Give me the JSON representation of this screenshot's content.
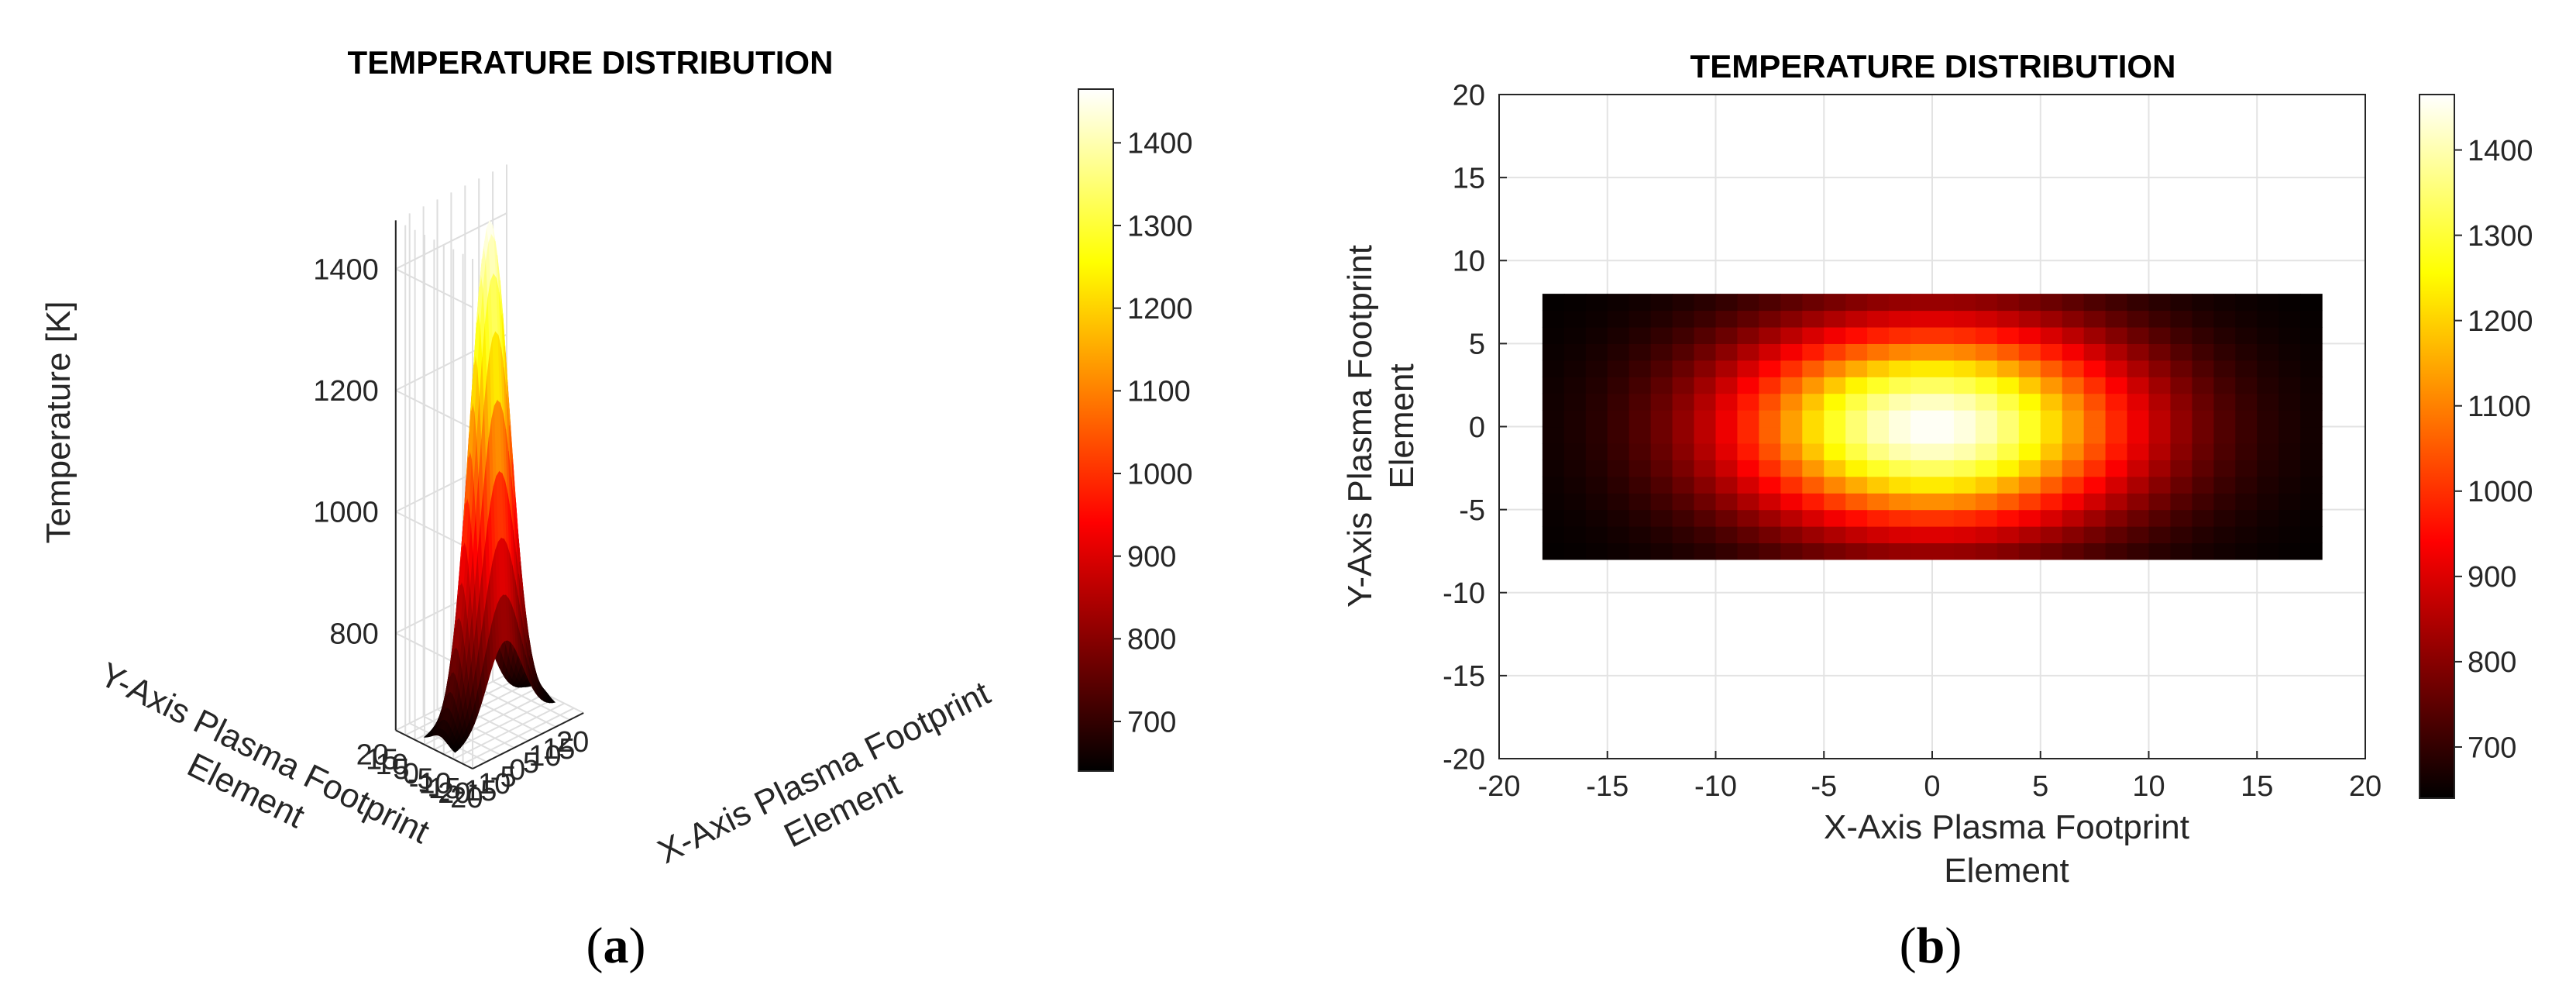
{
  "figure": {
    "panels": [
      {
        "caption_open": "(",
        "caption_letter": "a",
        "caption_close": ")"
      },
      {
        "caption_open": "(",
        "caption_letter": "b",
        "caption_close": ")"
      }
    ]
  },
  "chart_data": [
    {
      "type": "surface3d",
      "title": "TEMPERATURE DISTRIBUTION",
      "xlabel": [
        "X-Axis Plasma Footprint",
        "Element"
      ],
      "ylabel": [
        "Y-Axis Plasma Footprint",
        "Element"
      ],
      "zlabel": "Temperature [K]",
      "xlim": [
        -20,
        20
      ],
      "ylim": [
        -20,
        20
      ],
      "zlim": [
        640,
        1480
      ],
      "xticks": [
        -20,
        -15,
        -10,
        -5,
        0,
        5,
        10,
        15,
        20
      ],
      "yticks": [
        -20,
        -15,
        -10,
        -5,
        0,
        5,
        10,
        15,
        20
      ],
      "zticks": [
        800,
        1000,
        1200,
        1400
      ],
      "grid": true,
      "colormap": "hot",
      "field": {
        "x_range": [
          -18,
          18
        ],
        "y_range": [
          -8,
          8
        ],
        "grid_step": 1,
        "t_min": 640,
        "t_max": 1465,
        "sigma_x": 6.5,
        "sigma_y": 4.3,
        "peak": [
          0,
          0
        ]
      },
      "colorbar": {
        "ticks": [
          700,
          800,
          900,
          1000,
          1100,
          1200,
          1300,
          1400
        ],
        "range": [
          640,
          1465
        ]
      }
    },
    {
      "type": "heatmap",
      "title": "TEMPERATURE DISTRIBUTION",
      "xlabel": [
        "X-Axis Plasma Footprint",
        "Element"
      ],
      "ylabel": [
        "Y-Axis Plasma Footprint",
        "Element"
      ],
      "xlim": [
        -20,
        20
      ],
      "ylim": [
        -20,
        20
      ],
      "xticks": [
        -20,
        -15,
        -10,
        -5,
        0,
        5,
        10,
        15,
        20
      ],
      "yticks": [
        -20,
        -15,
        -10,
        -5,
        0,
        5,
        10,
        15,
        20
      ],
      "grid": true,
      "colormap": "hot",
      "field": {
        "x_range": [
          -18,
          18
        ],
        "y_range": [
          -8,
          8
        ],
        "grid_step": 1,
        "t_min": 640,
        "t_max": 1465,
        "sigma_x": 6.5,
        "sigma_y": 4.3,
        "peak": [
          0,
          0
        ]
      },
      "colorbar": {
        "ticks": [
          700,
          800,
          900,
          1000,
          1100,
          1200,
          1300,
          1400
        ],
        "range": [
          640,
          1465
        ]
      }
    }
  ]
}
